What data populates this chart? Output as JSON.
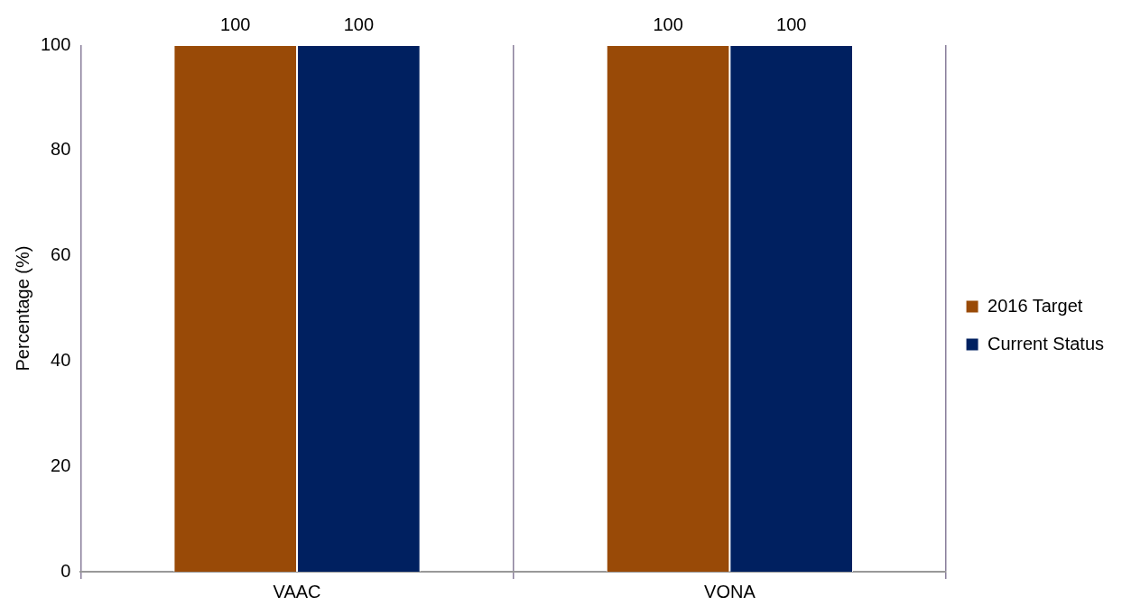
{
  "chart_data": {
    "type": "bar",
    "categories": [
      "VAAC",
      "VONA"
    ],
    "series": [
      {
        "name": "2016 Target",
        "color": "#994a07",
        "values": [
          100,
          100
        ]
      },
      {
        "name": "Current Status",
        "color": "#002060",
        "values": [
          100,
          100
        ]
      }
    ],
    "ylabel": "Percentage (%)",
    "ylim": [
      0,
      100
    ],
    "yticks": [
      0,
      20,
      40,
      60,
      80,
      100
    ],
    "grid": "x",
    "legend": "right",
    "data_labels": true
  }
}
